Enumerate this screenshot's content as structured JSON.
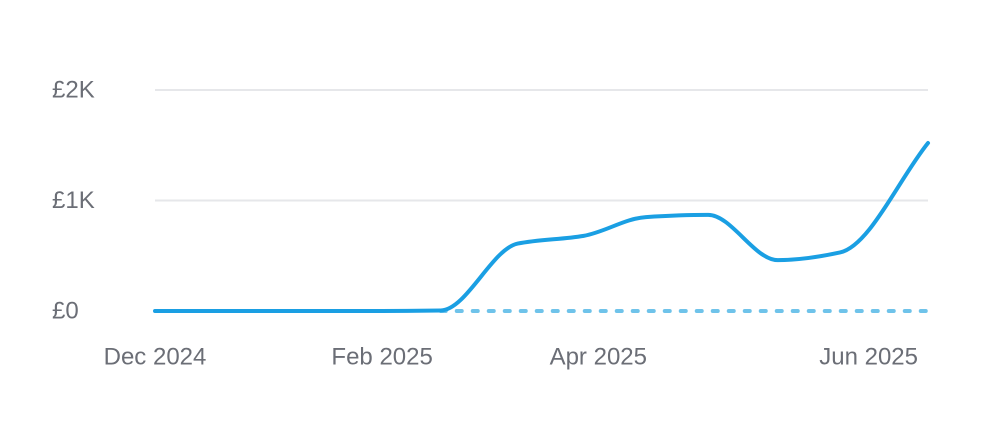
{
  "chart_data": {
    "type": "line",
    "title": "",
    "xlabel": "",
    "ylabel": "",
    "currency": "£",
    "ylim": [
      0,
      2000
    ],
    "yticks": [
      {
        "value": 0,
        "label": "£0"
      },
      {
        "value": 1000,
        "label": "£1K"
      },
      {
        "value": 2000,
        "label": "£2K"
      }
    ],
    "xlim": [
      "2024-12-01",
      "2025-06-30"
    ],
    "xticks": [
      {
        "date": "2024-12-01",
        "label": "Dec 2024"
      },
      {
        "date": "2025-02-01",
        "label": "Feb 2025"
      },
      {
        "date": "2025-04-01",
        "label": "Apr 2025"
      },
      {
        "date": "2025-06-01",
        "label": "Jun 2025"
      }
    ],
    "grid": true,
    "series": [
      {
        "color": "#1a9fe3",
        "points": [
          {
            "date": "2024-12-01",
            "value": 0
          },
          {
            "date": "2025-01-01",
            "value": 0
          },
          {
            "date": "2025-02-01",
            "value": 0
          },
          {
            "date": "2025-02-17",
            "value": 5
          },
          {
            "date": "2025-03-10",
            "value": 610
          },
          {
            "date": "2025-03-28",
            "value": 680
          },
          {
            "date": "2025-04-14",
            "value": 850
          },
          {
            "date": "2025-05-01",
            "value": 870
          },
          {
            "date": "2025-05-20",
            "value": 460
          },
          {
            "date": "2025-06-06",
            "value": 530
          },
          {
            "date": "2025-06-30",
            "value": 1520
          }
        ]
      }
    ],
    "baseline": {
      "value": 0,
      "from": "2025-02-17",
      "to": "2025-06-30",
      "style": "dotted",
      "color": "#6fc3ea"
    }
  }
}
